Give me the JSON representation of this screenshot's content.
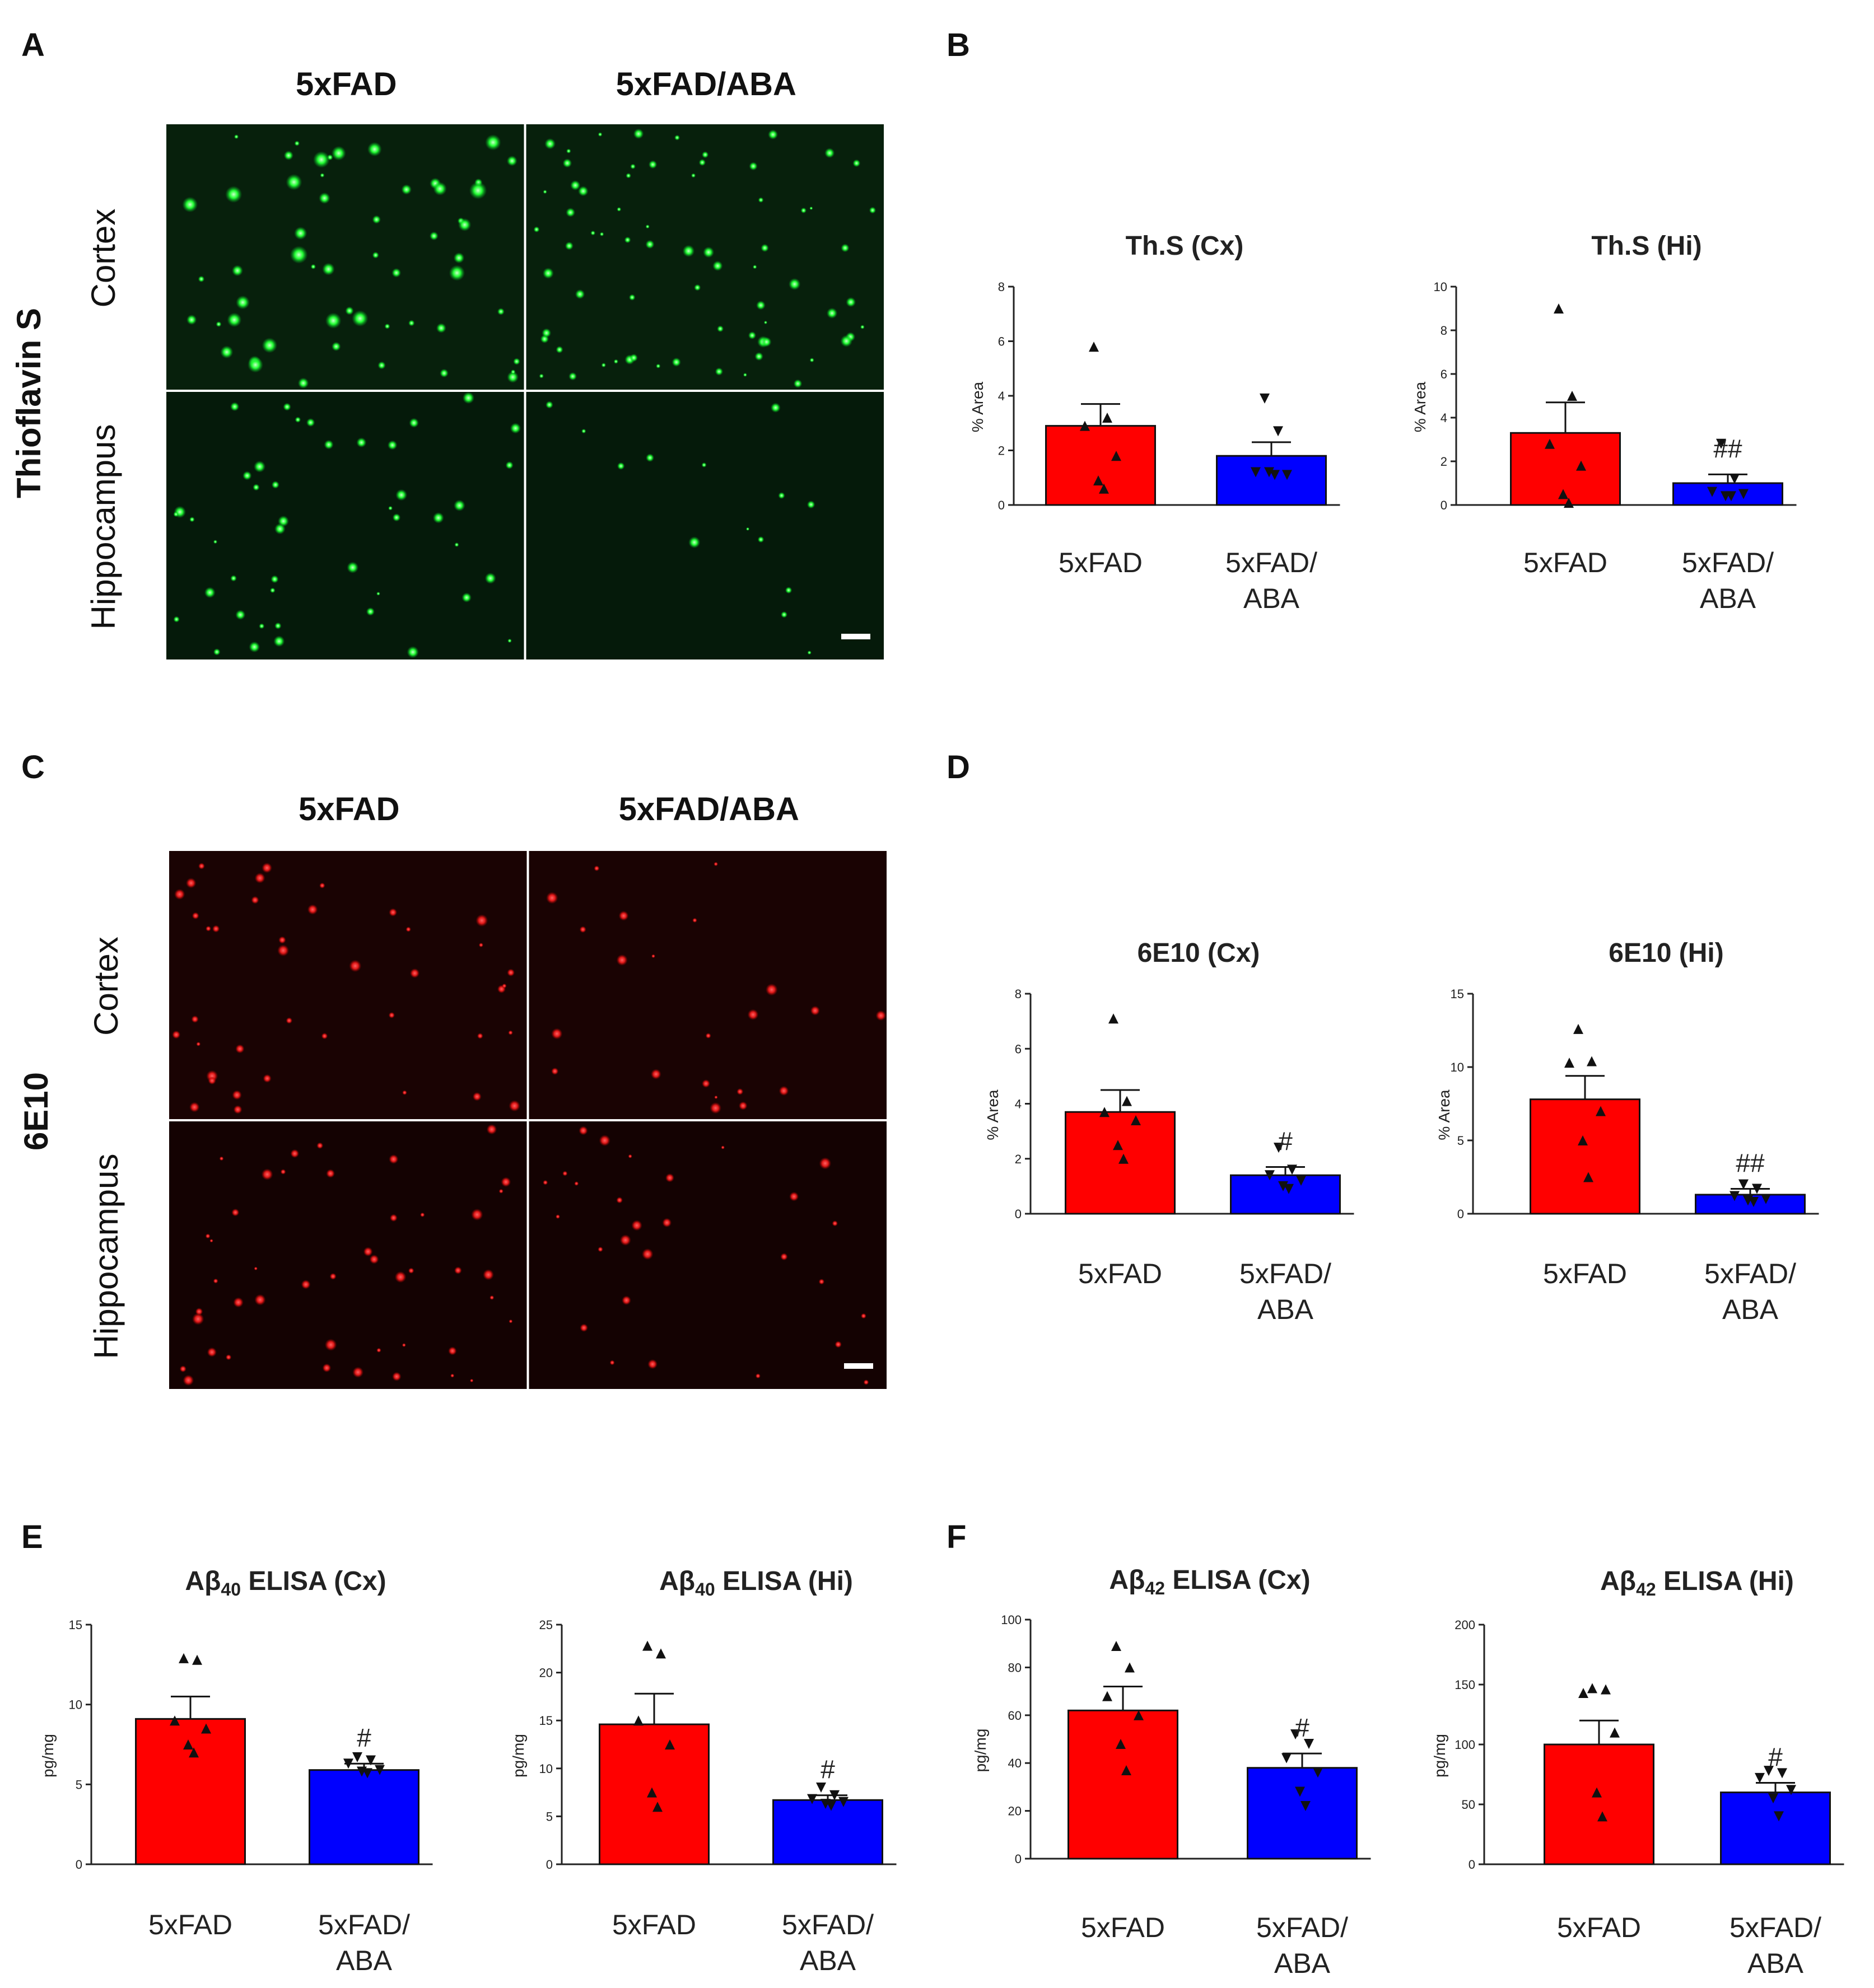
{
  "figure": {
    "panel_labels": [
      "A",
      "B",
      "C",
      "D",
      "E",
      "F"
    ],
    "micro_blocks": [
      {
        "panel": "A",
        "stain": "Thioflavin S",
        "columns": [
          "5xFAD",
          "5xFAD/ABA"
        ],
        "rows": [
          "Cortex",
          "Hippocampus"
        ],
        "tint": "#00dd33"
      },
      {
        "panel": "C",
        "stain": "6E10",
        "columns": [
          "5xFAD",
          "5xFAD/ABA"
        ],
        "rows": [
          "Cortex",
          "Hippocampus"
        ],
        "tint": "#dd1010"
      }
    ]
  },
  "chart_data": [
    {
      "type": "bar",
      "panel": "B",
      "title": "Th.S (Cx)",
      "ylabel": "% Area",
      "ylim": [
        0,
        8
      ],
      "yticks": [
        0,
        2,
        4,
        6,
        8
      ],
      "categories": [
        "5xFAD",
        "5xFAD/\nABA"
      ],
      "values": [
        2.9,
        1.8
      ],
      "errors": [
        0.8,
        0.5
      ],
      "points": [
        [
          5.8,
          3.2,
          2.9,
          1.8,
          0.9,
          0.6
        ],
        [
          3.9,
          2.7,
          1.2,
          1.1,
          1.2,
          1.1
        ]
      ],
      "significance": [
        "",
        ""
      ],
      "colors": [
        "#ff0000",
        "#0000ff"
      ]
    },
    {
      "type": "bar",
      "panel": "B",
      "title": "Th.S (Hi)",
      "ylabel": "% Area",
      "ylim": [
        0,
        10
      ],
      "yticks": [
        0,
        2,
        4,
        6,
        8,
        10
      ],
      "categories": [
        "5xFAD",
        "5xFAD/\nABA"
      ],
      "values": [
        3.3,
        1.0
      ],
      "errors": [
        1.4,
        0.4
      ],
      "points": [
        [
          9.0,
          5.0,
          2.8,
          1.8,
          0.5,
          0.1
        ],
        [
          2.8,
          1.2,
          0.6,
          0.5,
          0.4,
          0.4
        ]
      ],
      "significance": [
        "",
        "##"
      ],
      "colors": [
        "#ff0000",
        "#0000ff"
      ]
    },
    {
      "type": "bar",
      "panel": "D",
      "title": "6E10 (Cx)",
      "ylabel": "% Area",
      "ylim": [
        0,
        8
      ],
      "yticks": [
        0,
        2,
        4,
        6,
        8
      ],
      "categories": [
        "5xFAD",
        "5xFAD/\nABA"
      ],
      "values": [
        3.7,
        1.4
      ],
      "errors": [
        0.8,
        0.3
      ],
      "points": [
        [
          7.1,
          4.1,
          3.7,
          3.4,
          2.5,
          2.0
        ],
        [
          2.4,
          1.6,
          1.4,
          1.2,
          1.0,
          0.9
        ]
      ],
      "significance": [
        "",
        "#"
      ],
      "colors": [
        "#ff0000",
        "#0000ff"
      ]
    },
    {
      "type": "bar",
      "panel": "D",
      "title": "6E10 (Hi)",
      "ylabel": "% Area",
      "ylim": [
        0,
        15
      ],
      "yticks": [
        0,
        5,
        10,
        15
      ],
      "categories": [
        "5xFAD",
        "5xFAD/\nABA"
      ],
      "values": [
        7.8,
        1.3
      ],
      "errors": [
        1.6,
        0.4
      ],
      "points": [
        [
          12.6,
          10.4,
          10.3,
          7.0,
          5.0,
          2.5
        ],
        [
          2.0,
          1.7,
          1.2,
          1.0,
          0.9,
          0.8
        ]
      ],
      "significance": [
        "",
        "##"
      ],
      "colors": [
        "#ff0000",
        "#0000ff"
      ]
    },
    {
      "type": "bar",
      "panel": "E",
      "title": "Aβ40 ELISA (Cx)",
      "title_parts": {
        "pre": "Aβ",
        "sub": "40",
        "post": " ELISA (Cx)"
      },
      "ylabel": "pg/mg",
      "ylim": [
        0,
        15
      ],
      "yticks": [
        0,
        5,
        10,
        15
      ],
      "categories": [
        "5xFAD",
        "5xFAD/\nABA"
      ],
      "values": [
        9.1,
        5.9
      ],
      "errors": [
        1.4,
        0.4
      ],
      "points": [
        [
          12.9,
          12.8,
          9.0,
          8.5,
          7.5,
          7.0
        ],
        [
          6.7,
          6.5,
          6.3,
          5.9,
          5.8,
          5.7
        ]
      ],
      "significance": [
        "",
        "#"
      ],
      "colors": [
        "#ff0000",
        "#0000ff"
      ]
    },
    {
      "type": "bar",
      "panel": "E",
      "title": "Aβ40 ELISA (Hi)",
      "title_parts": {
        "pre": "Aβ",
        "sub": "40",
        "post": " ELISA (Hi)"
      },
      "ylabel": "pg/mg",
      "ylim": [
        0,
        25
      ],
      "yticks": [
        0,
        5,
        10,
        15,
        20,
        25
      ],
      "categories": [
        "5xFAD",
        "5xFAD/\nABA"
      ],
      "values": [
        14.6,
        6.7
      ],
      "errors": [
        3.2,
        0.5
      ],
      "points": [
        [
          22.8,
          22.0,
          15.0,
          12.5,
          7.5,
          6.0
        ],
        [
          8.0,
          7.2,
          6.8,
          6.5,
          6.3,
          6.1
        ]
      ],
      "significance": [
        "",
        "#"
      ],
      "colors": [
        "#ff0000",
        "#0000ff"
      ]
    },
    {
      "type": "bar",
      "panel": "F",
      "title": "Aβ42 ELISA (Cx)",
      "title_parts": {
        "pre": "Aβ",
        "sub": "42",
        "post": " ELISA (Cx)"
      },
      "ylabel": "pg/mg",
      "ylim": [
        0,
        100
      ],
      "yticks": [
        0,
        20,
        40,
        60,
        80,
        100
      ],
      "categories": [
        "5xFAD",
        "5xFAD/\nABA"
      ],
      "values": [
        62,
        38
      ],
      "errors": [
        10,
        6
      ],
      "points": [
        [
          89,
          80,
          68,
          60,
          48,
          37
        ],
        [
          52,
          48,
          42,
          36,
          28,
          22
        ]
      ],
      "significance": [
        "",
        "#"
      ],
      "colors": [
        "#ff0000",
        "#0000ff"
      ]
    },
    {
      "type": "bar",
      "panel": "F",
      "title": "Aβ42 ELISA (Hi)",
      "title_parts": {
        "pre": "Aβ",
        "sub": "42",
        "post": " ELISA (Hi)"
      },
      "ylabel": "pg/mg",
      "ylim": [
        0,
        200
      ],
      "yticks": [
        0,
        50,
        100,
        150,
        200
      ],
      "categories": [
        "5xFAD",
        "5xFAD/\nABA"
      ],
      "values": [
        100,
        60
      ],
      "errors": [
        20,
        8
      ],
      "points": [
        [
          147,
          146,
          143,
          110,
          60,
          40
        ],
        [
          78,
          76,
          72,
          62,
          55,
          40
        ]
      ],
      "significance": [
        "",
        "#"
      ],
      "colors": [
        "#ff0000",
        "#0000ff"
      ]
    }
  ]
}
